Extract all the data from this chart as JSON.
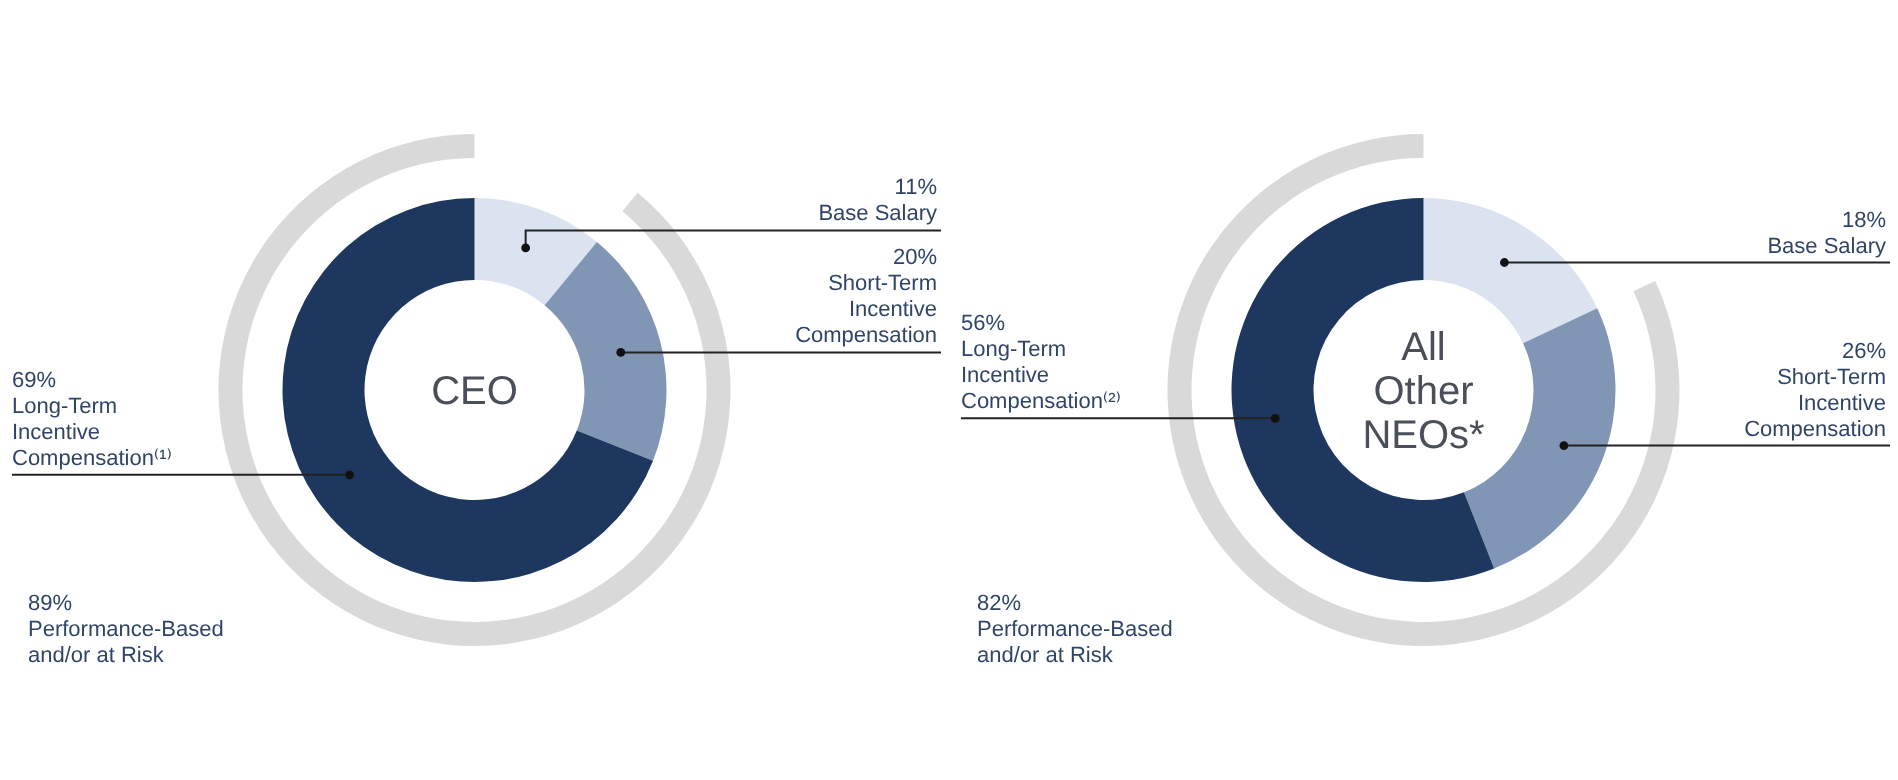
{
  "chart_data": [
    {
      "type": "donut",
      "title": "CEO",
      "categories": [
        "Base Salary",
        "Short-Term Incentive Compensation",
        "Long-Term Incentive Compensation⁽¹⁾"
      ],
      "values": [
        11,
        20,
        69
      ],
      "colors": [
        "#dbe3f1",
        "#8096b4",
        "#1e375e"
      ],
      "value_labels": [
        "11%",
        "20%",
        "69%"
      ],
      "series": [
        {
          "name": "Performance-Based and/or at Risk",
          "colors": [
            null,
            "#d9d9d9",
            null
          ],
          "values": [
            null,
            89,
            null
          ],
          "value_labels": [
            null,
            "89%",
            null
          ]
        }
      ]
    },
    {
      "type": "donut",
      "title": "All Other NEOs*",
      "categories": [
        "Base Salary",
        "Short-Term Incentive Compensation",
        "Long-Term Incentive Compensation⁽²⁾"
      ],
      "values": [
        18,
        26,
        56
      ],
      "colors": [
        "#dbe3f1",
        "#8096b4",
        "#1e375e"
      ],
      "value_labels": [
        "18%",
        "26%",
        "56%"
      ],
      "series": [
        {
          "name": "Performance-Based and/or at Risk",
          "colors": [
            null,
            "#d9d9d9",
            null
          ],
          "values": [
            null,
            82,
            null
          ],
          "value_labels": [
            null,
            "82%",
            null
          ]
        }
      ]
    }
  ]
}
